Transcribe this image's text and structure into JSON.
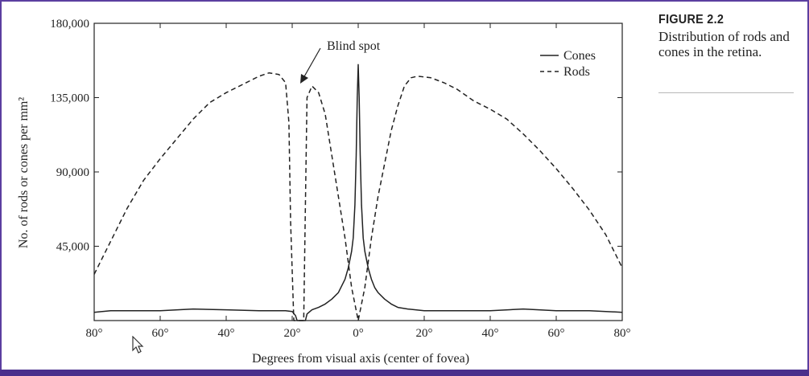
{
  "caption": {
    "figure_label": "FIGURE 2.2",
    "text": "Distribution of rods and cones in the retina."
  },
  "chart_data": {
    "type": "line",
    "xlabel": "Degrees from visual axis (center of fovea)",
    "ylabel": "No. of rods or cones per mm²",
    "xlim": [
      -80,
      80
    ],
    "ylim": [
      0,
      180000
    ],
    "x_ticks": [
      {
        "value": -80,
        "label": "80°"
      },
      {
        "value": -60,
        "label": "60°"
      },
      {
        "value": -40,
        "label": "40°"
      },
      {
        "value": -20,
        "label": "20°"
      },
      {
        "value": 0,
        "label": "0°"
      },
      {
        "value": 20,
        "label": "20°"
      },
      {
        "value": 40,
        "label": "40°"
      },
      {
        "value": 60,
        "label": "60°"
      },
      {
        "value": 80,
        "label": "80°"
      }
    ],
    "y_ticks": [
      {
        "value": 45000,
        "label": "45,000"
      },
      {
        "value": 90000,
        "label": "90,000"
      },
      {
        "value": 135000,
        "label": "135,000"
      },
      {
        "value": 180000,
        "label": "180,000"
      }
    ],
    "legend": {
      "position": "top-right"
    },
    "annotation": {
      "text": "Blind spot",
      "x": -17,
      "y": 145000
    },
    "series": [
      {
        "name": "Cones",
        "style": "solid",
        "color": "#222222",
        "points": [
          [
            -80,
            5000
          ],
          [
            -75,
            6000
          ],
          [
            -70,
            6000
          ],
          [
            -60,
            6000
          ],
          [
            -50,
            7000
          ],
          [
            -40,
            6500
          ],
          [
            -30,
            6000
          ],
          [
            -22,
            6000
          ],
          [
            -20,
            5500
          ],
          [
            -19,
            3000
          ],
          [
            -18.5,
            0
          ],
          [
            -16,
            0
          ],
          [
            -15.5,
            4000
          ],
          [
            -14,
            6500
          ],
          [
            -12,
            8000
          ],
          [
            -10,
            10000
          ],
          [
            -8,
            13000
          ],
          [
            -6,
            17000
          ],
          [
            -4,
            25000
          ],
          [
            -3,
            32000
          ],
          [
            -2,
            42000
          ],
          [
            -1.5,
            50000
          ],
          [
            -1,
            70000
          ],
          [
            -0.6,
            100000
          ],
          [
            -0.3,
            135000
          ],
          [
            0,
            155000
          ],
          [
            0.3,
            135000
          ],
          [
            0.6,
            100000
          ],
          [
            1,
            70000
          ],
          [
            1.5,
            50000
          ],
          [
            2,
            42000
          ],
          [
            3,
            32000
          ],
          [
            4,
            25000
          ],
          [
            5,
            20000
          ],
          [
            6,
            17000
          ],
          [
            8,
            13000
          ],
          [
            10,
            10000
          ],
          [
            12,
            8000
          ],
          [
            15,
            7000
          ],
          [
            20,
            6000
          ],
          [
            30,
            6000
          ],
          [
            40,
            6000
          ],
          [
            50,
            7000
          ],
          [
            60,
            6000
          ],
          [
            70,
            6000
          ],
          [
            80,
            5000
          ]
        ]
      },
      {
        "name": "Rods",
        "style": "dashed",
        "color": "#222222",
        "points": [
          [
            -80,
            28000
          ],
          [
            -75,
            48000
          ],
          [
            -70,
            68000
          ],
          [
            -65,
            85000
          ],
          [
            -60,
            98000
          ],
          [
            -55,
            110000
          ],
          [
            -50,
            122000
          ],
          [
            -45,
            132000
          ],
          [
            -40,
            138000
          ],
          [
            -35,
            143000
          ],
          [
            -30,
            148000
          ],
          [
            -27,
            150000
          ],
          [
            -24,
            149000
          ],
          [
            -22,
            144000
          ],
          [
            -21,
            120000
          ],
          [
            -20.5,
            60000
          ],
          [
            -19.5,
            0
          ],
          [
            -16.5,
            0
          ],
          [
            -16,
            70000
          ],
          [
            -15.5,
            135000
          ],
          [
            -14,
            142000
          ],
          [
            -12,
            138000
          ],
          [
            -10,
            125000
          ],
          [
            -8,
            100000
          ],
          [
            -6,
            75000
          ],
          [
            -4,
            50000
          ],
          [
            -2,
            20000
          ],
          [
            0,
            0
          ],
          [
            2,
            20000
          ],
          [
            4,
            50000
          ],
          [
            6,
            75000
          ],
          [
            8,
            95000
          ],
          [
            10,
            115000
          ],
          [
            12,
            130000
          ],
          [
            14,
            142000
          ],
          [
            16,
            147000
          ],
          [
            18,
            148000
          ],
          [
            22,
            147000
          ],
          [
            26,
            144000
          ],
          [
            30,
            140000
          ],
          [
            35,
            133000
          ],
          [
            40,
            128000
          ],
          [
            45,
            122000
          ],
          [
            50,
            113000
          ],
          [
            55,
            103000
          ],
          [
            60,
            92000
          ],
          [
            65,
            80000
          ],
          [
            70,
            67000
          ],
          [
            75,
            52000
          ],
          [
            80,
            32000
          ]
        ]
      }
    ]
  }
}
